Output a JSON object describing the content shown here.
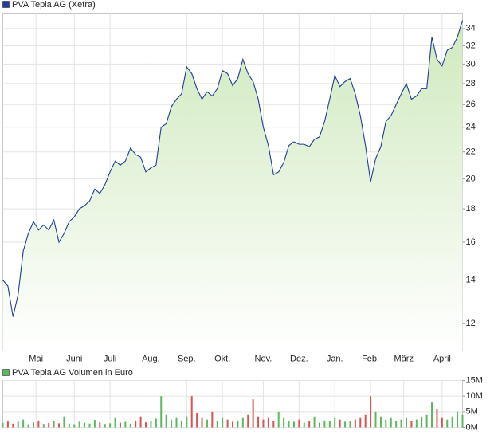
{
  "chart_data": [
    {
      "type": "area",
      "series": [
        {
          "name": "PVA Tepla AG (Xetra)",
          "color": "#1f3d99",
          "fill": "#cfe9bd",
          "values": [
            14.0,
            13.7,
            12.3,
            13.3,
            15.5,
            16.5,
            17.2,
            16.7,
            17.0,
            16.7,
            17.3,
            16.0,
            16.5,
            17.2,
            17.5,
            18.0,
            18.2,
            18.5,
            19.3,
            19.0,
            19.6,
            20.5,
            21.3,
            21.0,
            21.3,
            22.3,
            21.8,
            21.6,
            20.5,
            20.8,
            21.0,
            24.0,
            24.3,
            25.8,
            26.5,
            27.0,
            29.7,
            29.0,
            27.5,
            26.5,
            27.2,
            26.8,
            27.5,
            29.3,
            29.0,
            27.8,
            28.5,
            30.5,
            29.0,
            28.2,
            26.5,
            24.0,
            22.5,
            20.3,
            20.5,
            21.2,
            22.5,
            22.8,
            22.6,
            22.6,
            22.4,
            23.0,
            23.2,
            24.5,
            26.5,
            28.8,
            27.7,
            28.2,
            28.5,
            27.0,
            25.0,
            22.5,
            19.8,
            21.5,
            22.4,
            24.5,
            25.0,
            26.0,
            27.0,
            28.0,
            26.5,
            26.8,
            27.5,
            27.5,
            33.0,
            30.5,
            29.8,
            31.5,
            31.8,
            33.0,
            35.0
          ]
        }
      ],
      "log_scale": true,
      "ylim": [
        10.9,
        35.9
      ],
      "yticks": [
        12,
        14,
        16,
        18,
        20,
        22,
        24,
        26,
        28,
        30,
        32,
        34
      ],
      "xlim": [
        0,
        90
      ],
      "xticks": [
        {
          "value": 6.5,
          "label": "Mai"
        },
        {
          "value": 14,
          "label": "Juni"
        },
        {
          "value": 21,
          "label": "Juli"
        },
        {
          "value": 29,
          "label": "Aug."
        },
        {
          "value": 36,
          "label": "Sep."
        },
        {
          "value": 43,
          "label": "Okt."
        },
        {
          "value": 51,
          "label": "Nov."
        },
        {
          "value": 58,
          "label": "Dez."
        },
        {
          "value": 65,
          "label": "Jan."
        },
        {
          "value": 72,
          "label": "Feb."
        },
        {
          "value": 78.5,
          "label": "März"
        },
        {
          "value": 86,
          "label": "April"
        }
      ],
      "grid": true
    },
    {
      "type": "bar",
      "series": [
        {
          "name": "PVA Tepla AG Volumen in Euro",
          "color": "#5cb85c",
          "down_color": "#d9534f",
          "values": [
            1500000,
            2000000,
            1200000,
            1800000,
            2500000,
            1000000,
            1600000,
            2200000,
            1100000,
            1400000,
            2000000,
            1300000,
            3500000,
            1200000,
            1000000,
            1800000,
            1500000,
            1200000,
            2400000,
            1600000,
            1100000,
            1300000,
            3000000,
            1500000,
            1800000,
            1200000,
            2200000,
            3500000,
            1600000,
            2000000,
            2800000,
            10000000,
            4000000,
            2500000,
            3000000,
            2000000,
            3500000,
            10000000,
            4500000,
            3000000,
            2500000,
            5000000,
            2000000,
            3000000,
            2500000,
            1800000,
            2200000,
            3000000,
            4000000,
            9000000,
            3500000,
            2500000,
            3000000,
            2000000,
            5000000,
            3000000,
            2000000,
            1800000,
            2500000,
            1500000,
            2000000,
            3500000,
            1500000,
            2200000,
            2000000,
            3000000,
            2500000,
            1800000,
            2000000,
            2500000,
            3000000,
            4000000,
            10000000,
            5000000,
            3500000,
            2500000,
            3000000,
            2000000,
            2500000,
            3000000,
            2000000,
            2500000,
            3500000,
            4000000,
            8000000,
            6000000,
            3000000,
            2500000,
            3500000,
            5000000,
            4000000
          ]
        }
      ],
      "ylim": [
        0,
        15000000
      ],
      "yticks": [
        {
          "value": 0,
          "label": "0M"
        },
        {
          "value": 5000000,
          "label": "5M"
        },
        {
          "value": 10000000,
          "label": "10M"
        },
        {
          "value": 15000000,
          "label": "15M"
        }
      ],
      "xlim": [
        0,
        90
      ],
      "grid": true
    }
  ]
}
